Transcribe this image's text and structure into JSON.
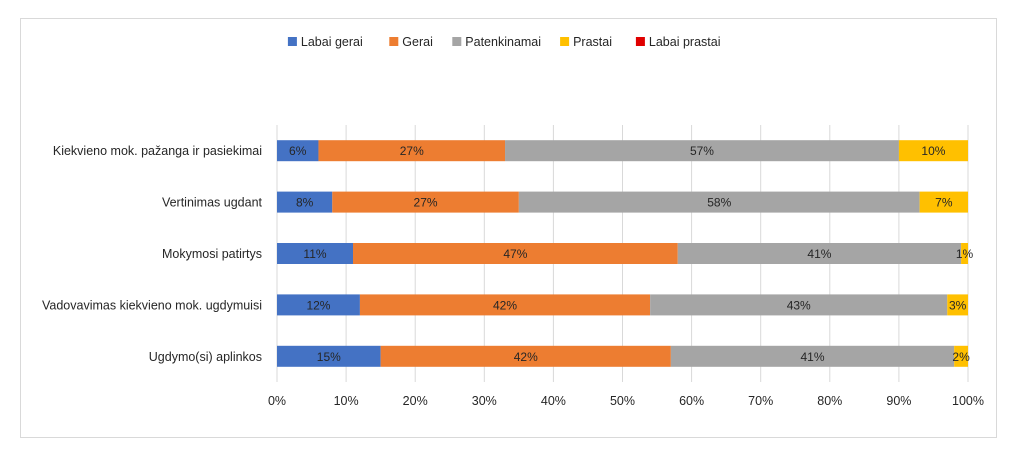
{
  "chart_data": {
    "type": "bar",
    "orientation": "horizontal",
    "stacked": "percent",
    "categories": [
      "Kiekvieno mok. pažanga ir pasiekimai",
      "Vertinimas ugdant",
      "Mokymosi patirtys",
      "Vadovavimas kiekvieno mok. ugdymuisi",
      "Ugdymo(si) aplinkos"
    ],
    "series": [
      {
        "name": "Labai gerai",
        "color": "#4472C4",
        "values": [
          6,
          8,
          11,
          12,
          15
        ],
        "labels": [
          "6%",
          "8%",
          "11%",
          "12%",
          "15%"
        ]
      },
      {
        "name": "Gerai",
        "color": "#ED7D31",
        "values": [
          27,
          27,
          47,
          42,
          42
        ],
        "labels": [
          "27%",
          "27%",
          "47%",
          "42%",
          "42%"
        ]
      },
      {
        "name": "Patenkinamai",
        "color": "#A5A5A5",
        "values": [
          57,
          58,
          41,
          43,
          41
        ],
        "labels": [
          "57%",
          "58%",
          "41%",
          "43%",
          "41%"
        ]
      },
      {
        "name": "Prastai",
        "color": "#FFC000",
        "values": [
          10,
          7,
          1,
          3,
          2
        ],
        "labels": [
          "10%",
          "7%",
          "1%",
          "3%",
          "2%"
        ]
      },
      {
        "name": "Labai prastai",
        "color": "#E00000",
        "values": [
          0,
          0,
          0,
          0,
          0
        ],
        "labels": [
          "",
          "",
          "",
          "",
          ""
        ]
      }
    ],
    "xlim": [
      0,
      100
    ],
    "xticks": [
      "0%",
      "10%",
      "20%",
      "30%",
      "40%",
      "50%",
      "60%",
      "70%",
      "80%",
      "90%",
      "100%"
    ],
    "grid": true,
    "legend_position": "top"
  }
}
